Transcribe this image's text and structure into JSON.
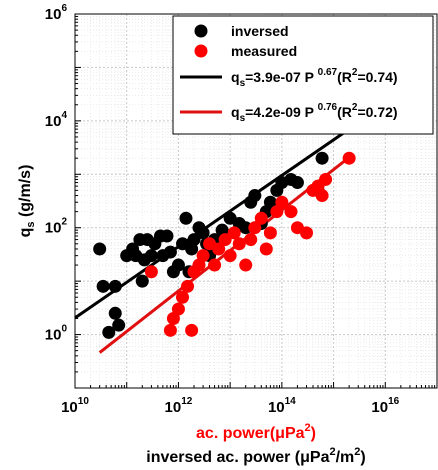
{
  "chart_data": {
    "type": "scatter",
    "x_scale": "log",
    "y_scale": "log",
    "xlim": [
      10000000000.0,
      1e+17
    ],
    "ylim": [
      0.1,
      1000000
    ],
    "x_ticks": [
      {
        "value": 10000000000.0,
        "base": "10",
        "exp": "10"
      },
      {
        "value": 1000000000000.0,
        "base": "10",
        "exp": "12"
      },
      {
        "value": 100000000000000.0,
        "base": "10",
        "exp": "14"
      },
      {
        "value": 1e+16,
        "base": "10",
        "exp": "16"
      }
    ],
    "y_ticks": [
      {
        "value": 1,
        "base": "10",
        "exp": "0"
      },
      {
        "value": 100,
        "base": "10",
        "exp": "2"
      },
      {
        "value": 10000,
        "base": "10",
        "exp": "4"
      },
      {
        "value": 1000000,
        "base": "10",
        "exp": "6"
      }
    ],
    "grid": true,
    "legend_position": "top-right",
    "ylabel": {
      "main": "q",
      "sub": "s",
      "rest": " (g/m/s)"
    },
    "xlabel_red": {
      "pre": "ac. power(μPa",
      "sup": "2",
      "post": ")",
      "color": "#ff0000"
    },
    "xlabel_black": {
      "pre": "inversed ac. power (μPa",
      "sup1": "2",
      "mid": "/m",
      "sup2": "2",
      "post": ")"
    },
    "series": [
      {
        "name": "inversed",
        "color": "#000000",
        "points": [
          [
            30000000000.0,
            40
          ],
          [
            35000000000.0,
            8
          ],
          [
            45000000000.0,
            1.1
          ],
          [
            60000000000.0,
            2.5
          ],
          [
            60000000000.0,
            8
          ],
          [
            70000000000.0,
            1.5
          ],
          [
            100000000000.0,
            30
          ],
          [
            130000000000.0,
            40
          ],
          [
            150000000000.0,
            30
          ],
          [
            180000000000.0,
            60
          ],
          [
            200000000000.0,
            10
          ],
          [
            220000000000.0,
            25
          ],
          [
            250000000000.0,
            60
          ],
          [
            300000000000.0,
            30
          ],
          [
            350000000000.0,
            50
          ],
          [
            450000000000.0,
            70
          ],
          [
            500000000000.0,
            30
          ],
          [
            600000000000.0,
            70
          ],
          [
            700000000000.0,
            35
          ],
          [
            800000000000.0,
            15
          ],
          [
            1000000000000.0,
            20
          ],
          [
            1200000000000.0,
            50
          ],
          [
            1400000000000.0,
            150
          ],
          [
            1600000000000.0,
            15
          ],
          [
            1800000000000.0,
            40
          ],
          [
            2000000000000.0,
            60
          ],
          [
            2500000000000.0,
            100
          ],
          [
            3000000000000.0,
            80
          ],
          [
            3500000000000.0,
            50
          ],
          [
            4000000000000.0,
            30
          ],
          [
            5000000000000.0,
            60
          ],
          [
            7000000000000.0,
            90
          ],
          [
            10000000000000.0,
            150
          ],
          [
            15000000000000.0,
            120
          ],
          [
            20000000000000.0,
            100
          ],
          [
            25000000000000.0,
            300
          ],
          [
            30000000000000.0,
            400
          ],
          [
            40000000000000.0,
            120
          ],
          [
            50000000000000.0,
            200
          ],
          [
            60000000000000.0,
            300
          ],
          [
            80000000000000.0,
            500
          ],
          [
            100000000000000.0,
            700
          ],
          [
            150000000000000.0,
            800
          ],
          [
            200000000000000.0,
            700
          ],
          [
            500000000000000.0,
            500
          ],
          [
            600000000000000.0,
            2000
          ]
        ]
      },
      {
        "name": "measured",
        "color": "#ff0000",
        "points": [
          [
            300000000000.0,
            15
          ],
          [
            700000000000.0,
            1.2
          ],
          [
            800000000000.0,
            2
          ],
          [
            1000000000000.0,
            3
          ],
          [
            1200000000000.0,
            5
          ],
          [
            1500000000000.0,
            8
          ],
          [
            1800000000000.0,
            1.2
          ],
          [
            2000000000000.0,
            15
          ],
          [
            2500000000000.0,
            20
          ],
          [
            3000000000000.0,
            30
          ],
          [
            4000000000000.0,
            50
          ],
          [
            5000000000000.0,
            20
          ],
          [
            6000000000000.0,
            40
          ],
          [
            8000000000000.0,
            60
          ],
          [
            10000000000000.0,
            30
          ],
          [
            12000000000000.0,
            80
          ],
          [
            15000000000000.0,
            50
          ],
          [
            20000000000000.0,
            20
          ],
          [
            25000000000000.0,
            60
          ],
          [
            30000000000000.0,
            100
          ],
          [
            40000000000000.0,
            150
          ],
          [
            50000000000000.0,
            40
          ],
          [
            60000000000000.0,
            80
          ],
          [
            80000000000000.0,
            200
          ],
          [
            100000000000000.0,
            300
          ],
          [
            150000000000000.0,
            200
          ],
          [
            200000000000000.0,
            100
          ],
          [
            300000000000000.0,
            80
          ],
          [
            400000000000000.0,
            500
          ],
          [
            500000000000000.0,
            600
          ],
          [
            600000000000000.0,
            400
          ],
          [
            700000000000000.0,
            800
          ],
          [
            2000000000000000.0,
            2000
          ]
        ]
      }
    ],
    "fit_lines": [
      {
        "x": [
          10000000000.0,
          2000000000000000.0
        ],
        "y": [
          2.05,
          7010
        ],
        "color": "#000000",
        "legend": {
          "pre": "q",
          "sub": "s",
          "eq": "=3.9e-07 P ",
          "exp": "0.67",
          "r_pre": "(R",
          "r_sup": "2",
          "r_val": "=0.74)"
        }
      },
      {
        "x": [
          30000000000.0,
          2300000000000000.0
        ],
        "y": [
          0.46,
          2300
        ],
        "color": "#e01010",
        "legend": {
          "pre": "q",
          "sub": "s",
          "eq": "=4.2e-09 P ",
          "exp": "0.76",
          "r_pre": "(R",
          "r_sup": "2",
          "r_val": "=0.72)"
        }
      }
    ]
  }
}
